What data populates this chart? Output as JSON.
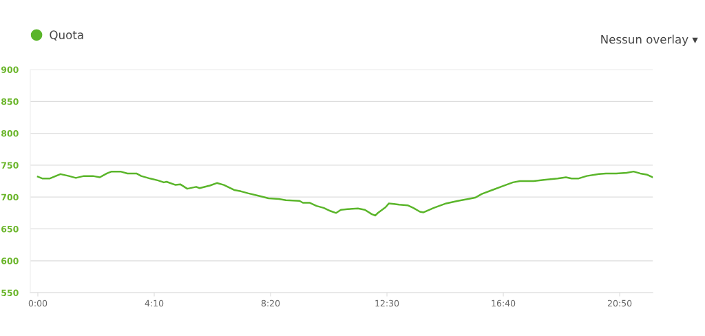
{
  "chart_data": {
    "type": "line",
    "x": [
      0,
      0.17,
      0.42,
      0.81,
      1.11,
      1.36,
      1.65,
      1.97,
      2.22,
      2.47,
      2.64,
      2.96,
      3.21,
      3.53,
      3.7,
      4.02,
      4.31,
      4.51,
      4.61,
      4.93,
      5.1,
      5.35,
      5.67,
      5.79,
      6.16,
      6.41,
      6.66,
      7.03,
      7.27,
      7.52,
      7.89,
      8.26,
      8.63,
      8.88,
      9.37,
      9.49,
      9.74,
      9.98,
      10.23,
      10.48,
      10.68,
      10.85,
      11.09,
      11.46,
      11.71,
      11.96,
      12.08,
      12.2,
      12.45,
      12.57,
      12.75,
      12.94,
      13.24,
      13.44,
      13.68,
      13.81,
      14.18,
      14.62,
      15.04,
      15.41,
      15.66,
      15.9,
      16.27,
      16.64,
      17.01,
      17.26,
      17.75,
      18.12,
      18.61,
      18.91,
      19.11,
      19.35,
      19.65,
      20.09,
      20.34,
      20.71,
      21.08,
      21.33,
      21.57,
      21.82,
      22.02
    ],
    "series": [
      {
        "name": "Quota",
        "color": "#5ab52a",
        "values": [
          732,
          729,
          729,
          736,
          733,
          730,
          733,
          733,
          731,
          737,
          740,
          740,
          737,
          737,
          733,
          729,
          726,
          723,
          724,
          719,
          720,
          713,
          716,
          714,
          718,
          722,
          719,
          711,
          709,
          706,
          702,
          698,
          697,
          695,
          694,
          691,
          691,
          686,
          683,
          678,
          675,
          680,
          681,
          682,
          680,
          673,
          671,
          676,
          684,
          690,
          689,
          688,
          687,
          683,
          677,
          676,
          683,
          690,
          694,
          697,
          699,
          705,
          711,
          717,
          723,
          725,
          725,
          727,
          729,
          731,
          729,
          729,
          733,
          736,
          737,
          737,
          738,
          740,
          737,
          735,
          731
        ]
      }
    ],
    "xlim": [
      -0.27,
      22.02
    ],
    "xticks": [
      {
        "value": 0,
        "label": "0:00"
      },
      {
        "value": 4.1667,
        "label": "4:10"
      },
      {
        "value": 8.3333,
        "label": "8:20"
      },
      {
        "value": 12.5,
        "label": "12:30"
      },
      {
        "value": 16.6667,
        "label": "16:40"
      },
      {
        "value": 20.8333,
        "label": "20:50"
      }
    ],
    "ylim": [
      550,
      900
    ],
    "yticks": [
      550,
      600,
      650,
      700,
      750,
      800,
      850,
      900
    ],
    "grid": "y",
    "legend": "top left",
    "marker": "none",
    "line_style": "solid",
    "annotations": [
      "Nessun overlay ▾"
    ]
  }
}
